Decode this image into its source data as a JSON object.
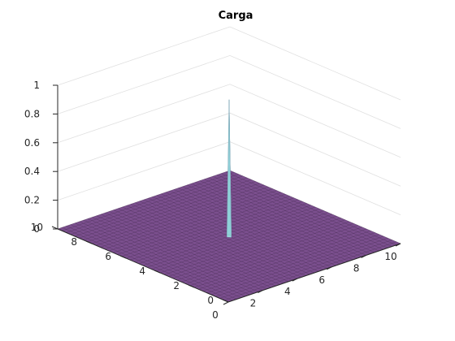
{
  "chart_data": {
    "type": "surface",
    "title": "Carga",
    "xlabel": "",
    "ylabel": "",
    "zlabel": "",
    "xlim": [
      0,
      10
    ],
    "ylim": [
      0,
      10
    ],
    "zlim": [
      0,
      1
    ],
    "x_ticks": [
      "0",
      "2",
      "4",
      "6",
      "8",
      "10"
    ],
    "y_ticks": [
      "0",
      "2",
      "4",
      "6",
      "8",
      "10"
    ],
    "z_ticks": [
      "0",
      "0.2",
      "0.4",
      "0.6",
      "0.8",
      "1"
    ],
    "grid": true,
    "surface": {
      "base_value": 0,
      "peak": {
        "x": 5,
        "y": 5,
        "z": 0.95
      }
    },
    "colors": {
      "surface_low": "#7b4f8e",
      "peak_high": "#a3e6e6",
      "mesh": "#4b2f58",
      "grid": "#e0e0e0",
      "axis": "#262626"
    }
  }
}
